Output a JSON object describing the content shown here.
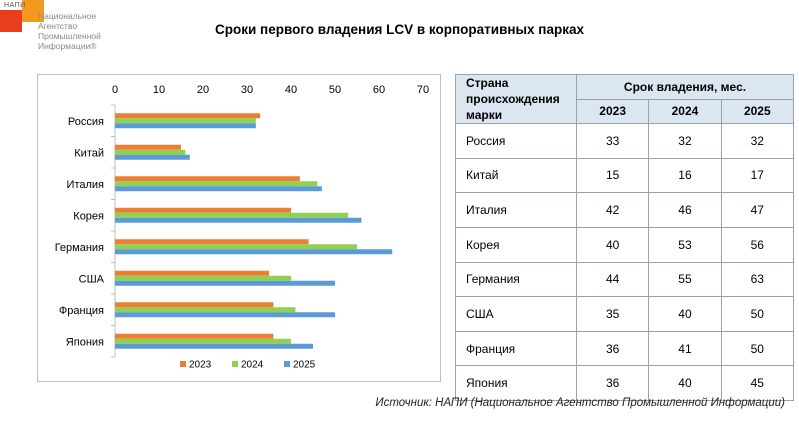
{
  "logo": {
    "abbr": "НАПИ",
    "lines": [
      "Национальное",
      "Агентство",
      "Промышленной",
      "Информации®"
    ],
    "colors": {
      "red": "#e8401c",
      "orange": "#f39a1e"
    }
  },
  "title": "Сроки первого владения LCV в корпоративных парках",
  "chart_data": {
    "type": "bar",
    "orientation": "horizontal",
    "categories": [
      "Россия",
      "Китай",
      "Италия",
      "Корея",
      "Германия",
      "США",
      "Франция",
      "Япония"
    ],
    "series": [
      {
        "name": "2023",
        "color": "#ed7d31",
        "values": [
          33,
          15,
          42,
          40,
          44,
          35,
          36,
          36
        ]
      },
      {
        "name": "2024",
        "color": "#92d050",
        "values": [
          32,
          16,
          46,
          53,
          55,
          40,
          41,
          40
        ]
      },
      {
        "name": "2025",
        "color": "#5b9bd5",
        "values": [
          32,
          17,
          47,
          56,
          63,
          50,
          50,
          45
        ]
      }
    ],
    "xlim": [
      0,
      70
    ],
    "xticks": [
      0,
      10,
      20,
      30,
      40,
      50,
      60,
      70
    ],
    "xaxis_position": "top",
    "grid": false,
    "legend_position": "bottom"
  },
  "table": {
    "header_country": "Страна происхождения марки",
    "header_period": "Срок владения, мес.",
    "years": [
      "2023",
      "2024",
      "2025"
    ],
    "rows": [
      {
        "country": "Россия",
        "values": [
          "33",
          "32",
          "32"
        ]
      },
      {
        "country": "Китай",
        "values": [
          "15",
          "16",
          "17"
        ]
      },
      {
        "country": "Италия",
        "values": [
          "42",
          "46",
          "47"
        ]
      },
      {
        "country": "Корея",
        "values": [
          "40",
          "53",
          "56"
        ]
      },
      {
        "country": "Германия",
        "values": [
          "44",
          "55",
          "63"
        ]
      },
      {
        "country": "США",
        "values": [
          "35",
          "40",
          "50"
        ]
      },
      {
        "country": "Франция",
        "values": [
          "36",
          "41",
          "50"
        ]
      },
      {
        "country": "Япония",
        "values": [
          "36",
          "40",
          "45"
        ]
      }
    ]
  },
  "source": "Источник: НАПИ (Национальное Агентство Промышленной Информации)"
}
